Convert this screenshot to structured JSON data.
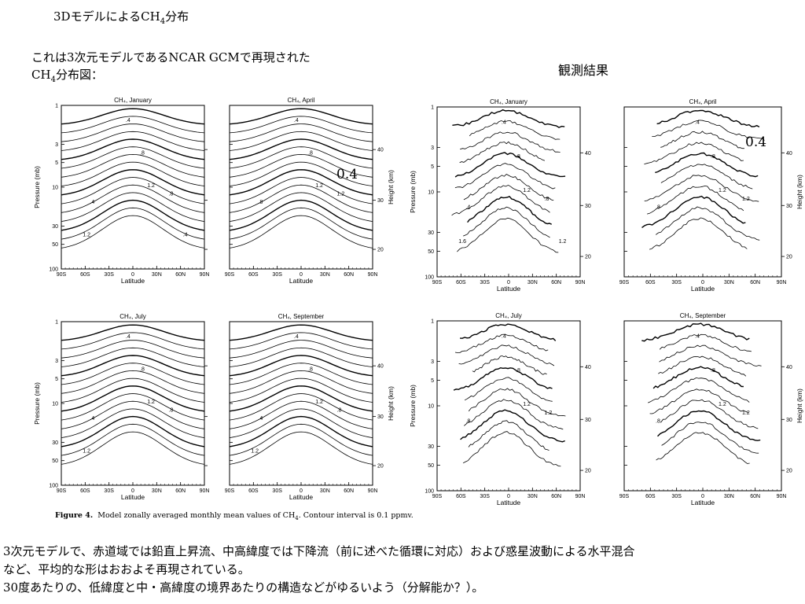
{
  "slide": {
    "title_main": "3Dモデルによる",
    "title_species": "CH",
    "title_sub": "4",
    "title_tail": "分布",
    "desc_line1": "これは3次元モデルであるNCAR GCMで再現された",
    "desc_line2_species": "CH",
    "desc_line2_sub": "4",
    "desc_line2_tail": "分布図：",
    "obs_label": "観測結果",
    "caption_figure": "Figure 4.",
    "caption_text": "Model zonally averaged monthly mean values of CH",
    "caption_sub": "4",
    "caption_tail": ". Contour interval is 0.1 ppmv.",
    "bottom_line1": "3次元モデルで、赤道域では鉛直上昇流、中高緯度では下降流（前に述べた循環に対応）および惑星波動による水平混合",
    "bottom_line2": "など、平均的な形はおおよそ再現されている。",
    "bottom_line3": "30度あたりの、低緯度と中・高緯度の境界あたりの構造などがゆるいよう（分解能か？）。",
    "annotation_model": "0.4",
    "annotation_obs": "0.4"
  },
  "axes": {
    "xlabel": "Latitude",
    "ylabel_left": "Pressure (mb)",
    "ylabel_right": "Height (km)",
    "x_ticks": [
      "90S",
      "60S",
      "30S",
      "0",
      "30N",
      "60N",
      "90N"
    ],
    "p_ticks": [
      "1",
      "3",
      "5",
      "10",
      "30",
      "50",
      "100"
    ],
    "h_ticks": [
      "40",
      "30",
      "20"
    ]
  },
  "panels": [
    {
      "group": "model",
      "title": "CH₄, January",
      "labels": [
        ".4",
        ".8",
        "1.2",
        ".4",
        ".8",
        "1.2",
        ".4"
      ]
    },
    {
      "group": "model",
      "title": "CH₄, April",
      "labels": [
        ".4",
        ".8",
        "1.2",
        ".8",
        "1.2"
      ]
    },
    {
      "group": "model",
      "title": "CH₄, July",
      "labels": [
        ".4",
        ".8",
        "1.2",
        ".4",
        ".8",
        "1.2"
      ]
    },
    {
      "group": "model",
      "title": "CH₄, September",
      "labels": [
        ".4",
        ".8",
        "1.2",
        ".4",
        ".8",
        "1.2"
      ]
    },
    {
      "group": "obs",
      "title": "CH₄, January",
      "labels": [
        ".4",
        ".8",
        "1.2",
        ".4",
        ".8",
        "1.6",
        "1.2"
      ]
    },
    {
      "group": "obs",
      "title": "CH₄, April",
      "labels": [
        ".4",
        ".8",
        "1.2",
        ".8",
        "1.2"
      ]
    },
    {
      "group": "obs",
      "title": "CH₄, July",
      "labels": [
        ".4",
        ".8",
        "1.2",
        ".8",
        "1.2"
      ]
    },
    {
      "group": "obs",
      "title": "CH₄, September",
      "labels": [
        ".4",
        ".8",
        "1.2",
        ".8",
        "1.2"
      ]
    }
  ],
  "colors": {
    "ink": "#000000",
    "background": "#ffffff"
  }
}
